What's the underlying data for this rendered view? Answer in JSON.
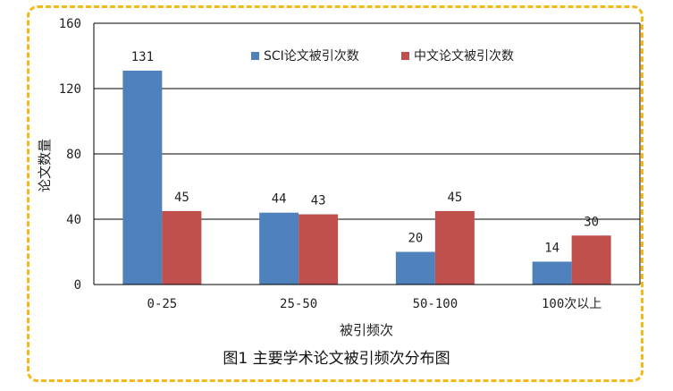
{
  "chart_data": {
    "type": "bar",
    "categories": [
      "0-25",
      "25-50",
      "50-100",
      "100次以上"
    ],
    "series": [
      {
        "name": "SCI论文被引次数",
        "color": "#4f81bd",
        "values": [
          131,
          44,
          20,
          14
        ]
      },
      {
        "name": "中文论文被引次数",
        "color": "#c0504d",
        "values": [
          45,
          43,
          45,
          30
        ]
      }
    ],
    "xlabel": "被引频次",
    "ylabel": "论文数量",
    "ylim": [
      0,
      160
    ],
    "yticks": [
      0,
      40,
      80,
      120,
      160
    ],
    "grid": true,
    "legend": "top-center",
    "frame_color": "#f2b918"
  },
  "caption": "图1  主要学术论文被引频次分布图"
}
